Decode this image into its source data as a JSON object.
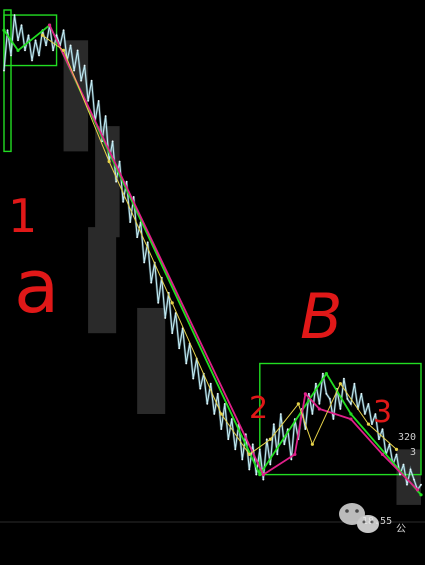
{
  "chart_data": {
    "type": "line",
    "title": "",
    "xlabel": "",
    "ylabel": "",
    "grid": false,
    "legend": "none",
    "ylim": [
      0,
      100
    ],
    "series": [
      {
        "values": [
          88,
          96,
          91,
          99,
          94,
          97,
          92,
          95,
          90,
          94,
          91,
          96,
          93,
          97,
          92,
          95,
          93,
          96,
          90,
          93,
          88,
          92,
          86,
          89,
          82,
          86,
          78,
          82,
          74,
          79,
          70,
          74,
          66,
          70,
          62,
          66,
          58,
          63,
          55,
          58,
          50,
          54,
          46,
          50,
          42,
          47,
          39,
          44,
          36,
          40,
          33,
          37,
          30,
          34,
          27,
          31,
          25,
          28,
          22,
          26,
          20,
          24,
          17,
          22,
          15,
          19,
          13,
          18,
          11,
          16,
          9,
          14,
          8,
          13,
          7,
          15,
          10,
          18,
          12,
          20,
          14,
          17,
          11,
          19,
          15,
          21,
          17,
          24,
          20,
          26,
          22,
          28,
          24,
          23,
          19,
          25,
          21,
          27,
          23,
          22,
          26,
          21,
          24,
          20,
          22,
          18,
          20,
          15,
          17,
          12,
          14,
          10,
          12,
          8,
          10,
          6,
          9,
          7,
          5,
          6
        ]
      }
    ],
    "swing_lines": [
      {
        "color": "#22dd22",
        "points": [
          [
            0,
            96
          ],
          [
            4,
            92
          ],
          [
            13,
            97
          ],
          [
            73,
            8
          ],
          [
            92,
            28
          ],
          [
            99,
            20
          ],
          [
            119,
            4
          ]
        ]
      },
      {
        "color": "#e0208a",
        "points": [
          [
            13,
            97
          ],
          [
            74,
            8
          ],
          [
            83,
            12
          ],
          [
            86,
            24
          ],
          [
            90,
            21
          ],
          [
            99,
            19
          ],
          [
            108,
            12
          ],
          [
            118,
            5
          ]
        ]
      },
      {
        "color": "#e6d24a",
        "points": [
          [
            11,
            95
          ],
          [
            17,
            92
          ],
          [
            30,
            70
          ],
          [
            48,
            42
          ],
          [
            62,
            20
          ],
          [
            70,
            12
          ],
          [
            76,
            15
          ],
          [
            84,
            22
          ],
          [
            88,
            14
          ],
          [
            96,
            26
          ],
          [
            104,
            18
          ],
          [
            112,
            13
          ]
        ]
      }
    ],
    "boxes": [
      {
        "color": "#22dd22",
        "x": [
          0,
          2
        ],
        "y": [
          72,
          100
        ]
      },
      {
        "color": "#22dd22",
        "x": [
          73,
          119
        ],
        "y": [
          8,
          30
        ]
      },
      {
        "color": "#22dd22",
        "x": [
          0,
          15
        ],
        "y": [
          89,
          99
        ]
      }
    ],
    "shaded_zones": [
      {
        "x": [
          17,
          24
        ],
        "y": [
          72,
          94
        ]
      },
      {
        "x": [
          26,
          33
        ],
        "y": [
          55,
          77
        ]
      },
      {
        "x": [
          24,
          32
        ],
        "y": [
          36,
          57
        ]
      },
      {
        "x": [
          38,
          46
        ],
        "y": [
          20,
          41
        ]
      },
      {
        "x": [
          112,
          119
        ],
        "y": [
          2,
          13
        ]
      }
    ],
    "annotations": {
      "label_1": "1",
      "label_a": "a",
      "label_b": "B",
      "label_2": "2",
      "label_3": "3"
    },
    "price_tags": [
      "320",
      "3"
    ],
    "bottom_value": "18.55"
  },
  "watermark": {
    "text": "公",
    "icon": "wechat-icon"
  },
  "colors": {
    "background": "#000000",
    "price_line": "#bfe9f2",
    "green": "#22dd22",
    "magenta": "#e0208a",
    "yellow": "#e6d24a",
    "red_ink": "#e01818",
    "zone": "#2a2a2a"
  }
}
